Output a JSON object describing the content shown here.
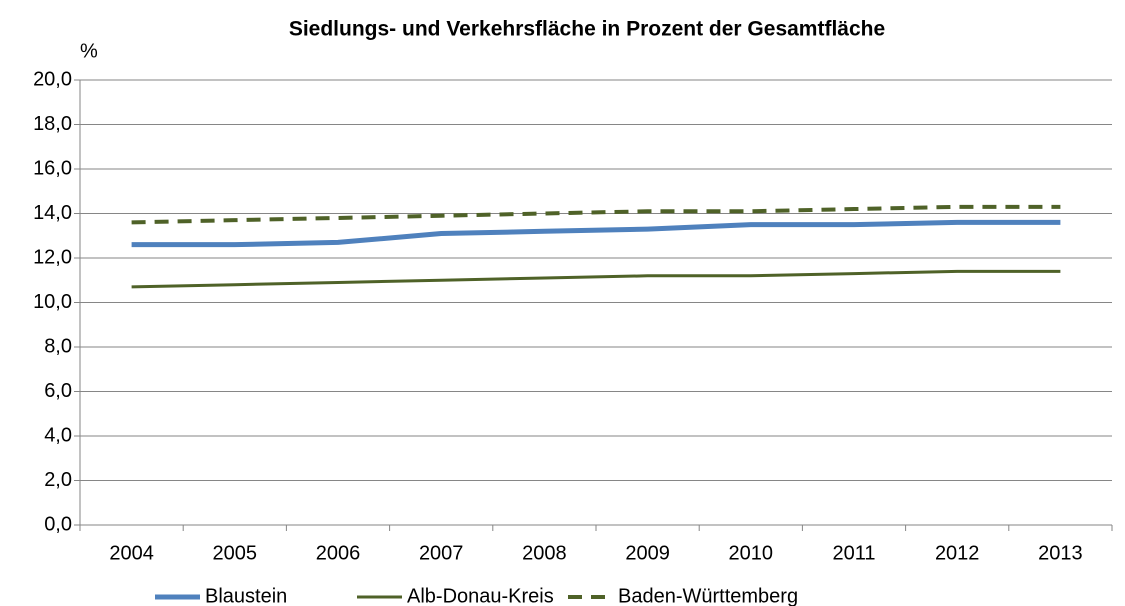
{
  "chart_data": {
    "type": "line",
    "title": "Siedlungs- und Verkehrsfläche in Prozent der Gesamtfläche",
    "y_label": "%",
    "categories": [
      "2004",
      "2005",
      "2006",
      "2007",
      "2008",
      "2009",
      "2010",
      "2011",
      "2012",
      "2013"
    ],
    "series": [
      {
        "name": "Blaustein",
        "color": "#4f81bd",
        "style": "solid",
        "width": 5,
        "values": [
          12.6,
          12.6,
          12.7,
          13.1,
          13.2,
          13.3,
          13.5,
          13.5,
          13.6,
          13.6
        ]
      },
      {
        "name": "Alb-Donau-Kreis",
        "color": "#4f6228",
        "style": "solid",
        "width": 3,
        "values": [
          10.7,
          10.8,
          10.9,
          11.0,
          11.1,
          11.2,
          11.2,
          11.3,
          11.4,
          11.4
        ]
      },
      {
        "name": "Baden-Württemberg",
        "color": "#4f6228",
        "style": "dashed",
        "width": 4,
        "values": [
          13.6,
          13.7,
          13.8,
          13.9,
          14.0,
          14.1,
          14.1,
          14.2,
          14.3,
          14.3
        ]
      }
    ],
    "ylim": [
      0,
      20
    ],
    "yticks": [
      {
        "value": 0,
        "label": "0,0"
      },
      {
        "value": 2,
        "label": "2,0"
      },
      {
        "value": 4,
        "label": "4,0"
      },
      {
        "value": 6,
        "label": "6,0"
      },
      {
        "value": 8,
        "label": "8,0"
      },
      {
        "value": 10,
        "label": "10,0"
      },
      {
        "value": 12,
        "label": "12,0"
      },
      {
        "value": 14,
        "label": "14,0"
      },
      {
        "value": 16,
        "label": "16,0"
      },
      {
        "value": 18,
        "label": "18,0"
      },
      {
        "value": 20,
        "label": "20,0"
      }
    ],
    "grid": true,
    "legend": "bottom"
  }
}
